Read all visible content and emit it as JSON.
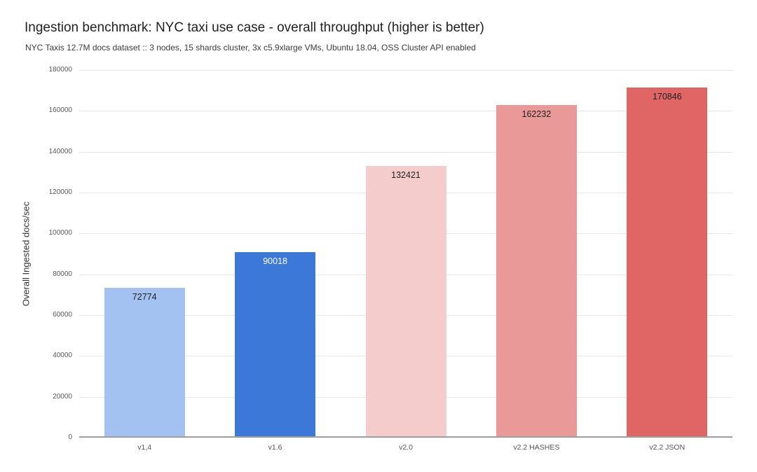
{
  "chart_data": {
    "type": "bar",
    "title": "Ingestion benchmark: NYC taxi use case - overall throughput (higher is better)",
    "subtitle": "NYC Taxis 12.7M docs dataset :: 3 nodes, 15 shards cluster, 3x c5.9xlarge VMs, Ubuntu 18.04, OSS Cluster API enabled",
    "xlabel": "",
    "ylabel": "Overall Ingested docs/sec",
    "categories": [
      "v1,4",
      "v1.6",
      "v2.0",
      "v2.2 HASHES",
      "v2.2 JSON"
    ],
    "values": [
      72774,
      90018,
      132421,
      162232,
      170846
    ],
    "value_labels": [
      "72774",
      "90018",
      "132421",
      "162232",
      "170846"
    ],
    "bar_colors": [
      "#a4c2f1",
      "#3c78d8",
      "#f4cccc",
      "#ea9999",
      "#e06666"
    ],
    "value_label_colors": [
      "#212121",
      "#ffffff",
      "#212121",
      "#212121",
      "#212121"
    ],
    "ylim": [
      0,
      180000
    ],
    "yticks": [
      0,
      20000,
      40000,
      60000,
      80000,
      100000,
      120000,
      140000,
      160000,
      180000
    ],
    "grid": true,
    "legend": "none",
    "grid_color": "#e8e8e8",
    "axis_line_color": "#9e9e9e",
    "background_color": "#ffffff"
  }
}
